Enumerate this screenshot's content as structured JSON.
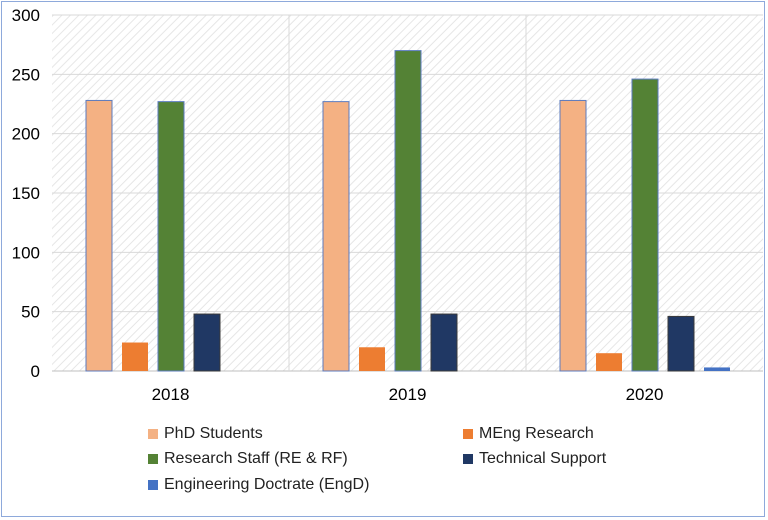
{
  "chart_data": {
    "type": "bar",
    "title": "",
    "xlabel": "",
    "ylabel": "",
    "categories": [
      "2018",
      "2019",
      "2020"
    ],
    "ylim": [
      0,
      300
    ],
    "yticks": [
      0,
      50,
      100,
      150,
      200,
      250,
      300
    ],
    "grid": true,
    "legend_placement": "bottom",
    "series": [
      {
        "name": "PhD Students",
        "color": "#f4b183",
        "values": [
          228,
          227,
          228
        ]
      },
      {
        "name": "MEng Research",
        "color": "#ed7d31",
        "values": [
          24,
          20,
          15
        ]
      },
      {
        "name": "Research Staff (RE & RF)",
        "color": "#548235",
        "values": [
          227,
          270,
          246
        ]
      },
      {
        "name": "Technical Support",
        "color": "#203864",
        "values": [
          48,
          48,
          46
        ]
      },
      {
        "name": "Engineering Doctrate (EngD)",
        "color": "#4472c4",
        "values": [
          0,
          0,
          3
        ]
      }
    ]
  }
}
